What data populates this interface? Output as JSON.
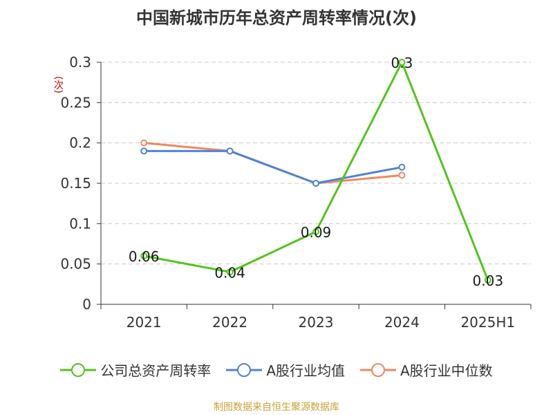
{
  "chart_data": {
    "type": "line",
    "title": "中国新城市历年总资产周转率情况(次)",
    "ylabel": "(次)",
    "categories": [
      "2021",
      "2022",
      "2023",
      "2024",
      "2025H1"
    ],
    "ylim": [
      0,
      0.3
    ],
    "yticks": [
      {
        "value": 0,
        "label": "0"
      },
      {
        "value": 0.05,
        "label": "0.05"
      },
      {
        "value": 0.1,
        "label": "0.1"
      },
      {
        "value": 0.15,
        "label": "0.15"
      },
      {
        "value": 0.2,
        "label": "0.2"
      },
      {
        "value": 0.25,
        "label": "0.25"
      },
      {
        "value": 0.3,
        "label": "0.3"
      }
    ],
    "grid": true,
    "legend_position": "bottom",
    "series": [
      {
        "name": "公司总资产周转率",
        "color": "#52c41a",
        "values": [
          0.06,
          0.04,
          0.09,
          0.3,
          0.03
        ],
        "labels": [
          "0.06",
          "0.04",
          "0.09",
          "0.3",
          "0.03"
        ]
      },
      {
        "name": "A股行业均值",
        "color": "#4f82d9",
        "values": [
          0.19,
          0.19,
          0.15,
          0.17,
          null
        ]
      },
      {
        "name": "A股行业中位数",
        "color": "#f08a5d",
        "values": [
          0.2,
          0.19,
          0.15,
          0.16,
          null
        ]
      }
    ]
  },
  "source": "制图数据来自恒生聚源数据库"
}
